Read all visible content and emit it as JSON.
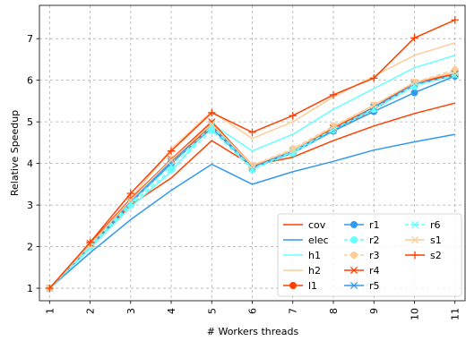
{
  "chart_data": {
    "type": "line",
    "xlabel": "# Workers threads",
    "ylabel": "Relative Speedup",
    "x": [
      1,
      2,
      3,
      4,
      5,
      6,
      7,
      8,
      9,
      10,
      11
    ],
    "xlim": [
      0.75,
      11.25
    ],
    "ylim": [
      0.7,
      7.8
    ],
    "yticks": [
      1,
      2,
      3,
      4,
      5,
      6,
      7
    ],
    "grid": true,
    "legend_position": "lower-right",
    "series": [
      {
        "name": "cov",
        "color": "#ff4000",
        "marker": "none",
        "dashed": false,
        "values": [
          1.0,
          2.0,
          3.0,
          3.65,
          4.55,
          3.95,
          4.15,
          4.55,
          4.9,
          5.2,
          5.45
        ]
      },
      {
        "name": "elec",
        "color": "#3399ee",
        "marker": "none",
        "dashed": false,
        "values": [
          1.0,
          1.85,
          2.65,
          3.35,
          3.98,
          3.5,
          3.8,
          4.05,
          4.32,
          4.52,
          4.7
        ]
      },
      {
        "name": "h1",
        "color": "#66ffff",
        "marker": "none",
        "dashed": false,
        "values": [
          1.0,
          1.95,
          2.95,
          3.8,
          4.95,
          4.3,
          4.7,
          5.3,
          5.8,
          6.3,
          6.6
        ]
      },
      {
        "name": "h2",
        "color": "#ffcc99",
        "marker": "none",
        "dashed": false,
        "values": [
          1.0,
          2.05,
          3.15,
          4.35,
          5.25,
          4.6,
          5.0,
          5.6,
          6.1,
          6.6,
          6.9
        ]
      },
      {
        "name": "l1",
        "color": "#ff4000",
        "marker": "circle",
        "dashed": false,
        "values": [
          1.0,
          2.05,
          3.1,
          4.05,
          4.9,
          3.9,
          4.3,
          4.8,
          5.3,
          5.9,
          6.15
        ]
      },
      {
        "name": "r1",
        "color": "#3399ee",
        "marker": "circle",
        "dashed": false,
        "values": [
          1.0,
          2.0,
          3.05,
          4.0,
          4.85,
          3.9,
          4.25,
          4.78,
          5.25,
          5.7,
          6.1
        ]
      },
      {
        "name": "r2",
        "color": "#66ffff",
        "marker": "circle",
        "dashed": true,
        "values": [
          1.0,
          2.0,
          3.0,
          3.85,
          4.8,
          3.85,
          4.25,
          4.8,
          5.3,
          5.85,
          6.15
        ]
      },
      {
        "name": "r3",
        "color": "#ffcc99",
        "marker": "circle",
        "dashed": true,
        "values": [
          1.0,
          2.05,
          3.1,
          4.1,
          4.95,
          3.95,
          4.35,
          4.9,
          5.4,
          5.95,
          6.25
        ]
      },
      {
        "name": "r4",
        "color": "#ff4000",
        "marker": "x",
        "dashed": false,
        "values": [
          1.0,
          2.08,
          3.15,
          4.1,
          5.0,
          3.95,
          4.3,
          4.85,
          5.35,
          5.95,
          6.15
        ]
      },
      {
        "name": "r5",
        "color": "#3399ee",
        "marker": "x",
        "dashed": false,
        "values": [
          1.0,
          2.05,
          3.1,
          4.05,
          4.95,
          3.9,
          4.3,
          4.8,
          5.35,
          5.9,
          6.12
        ]
      },
      {
        "name": "r6",
        "color": "#66ffff",
        "marker": "x",
        "dashed": true,
        "values": [
          1.0,
          2.02,
          3.05,
          3.95,
          4.9,
          3.88,
          4.28,
          4.82,
          5.32,
          5.88,
          6.12
        ]
      },
      {
        "name": "s1",
        "color": "#ffcc99",
        "marker": "x",
        "dashed": false,
        "values": [
          1.0,
          2.05,
          3.12,
          4.08,
          4.95,
          3.95,
          4.32,
          4.88,
          5.4,
          5.95,
          6.2
        ]
      },
      {
        "name": "s2",
        "color": "#ff4000",
        "marker": "plus",
        "dashed": false,
        "values": [
          1.0,
          2.1,
          3.28,
          4.3,
          5.22,
          4.75,
          5.15,
          5.65,
          6.05,
          7.02,
          7.45
        ]
      }
    ]
  }
}
